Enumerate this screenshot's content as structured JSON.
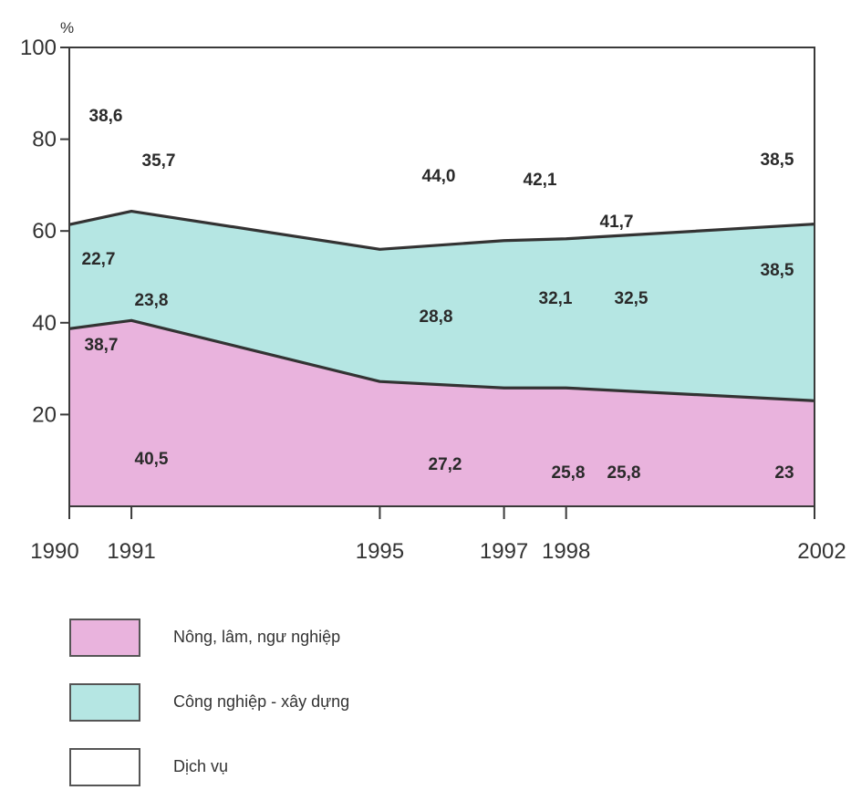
{
  "chart_data": {
    "type": "area",
    "stacked": true,
    "x": [
      1990,
      1991,
      1995,
      1997,
      1998,
      2002
    ],
    "x_tick_labels": [
      "1990",
      "1991",
      "1995",
      "1997",
      "1998",
      "2002"
    ],
    "ylim": [
      0,
      100
    ],
    "y_ticks": [
      20,
      40,
      60,
      80,
      100
    ],
    "y_tick_labels": [
      "20",
      "40",
      "60",
      "80",
      "100"
    ],
    "y_unit": "%",
    "series": [
      {
        "name": "Nông, lâm, ngư nghiệp",
        "color": "#e9b3dd",
        "values": [
          38.7,
          40.5,
          27.2,
          25.8,
          25.8,
          23
        ],
        "labels": [
          "38,7",
          "40,5",
          "27,2",
          "25,8",
          "25,8",
          "23"
        ]
      },
      {
        "name": "Công nghiệp - xây dựng",
        "color": "#b5e6e3",
        "values": [
          22.7,
          23.8,
          28.8,
          32.1,
          32.5,
          38.5
        ],
        "labels": [
          "22,7",
          "23,8",
          "28,8",
          "32,1",
          "32,5",
          "38,5"
        ]
      },
      {
        "name": "Dịch vụ",
        "color": "#ffffff",
        "values": [
          38.6,
          35.7,
          44.0,
          42.1,
          41.7,
          38.5
        ],
        "labels": [
          "38,6",
          "35,7",
          "44,0",
          "42,1",
          "41,7",
          "38,5"
        ]
      }
    ],
    "legend_position": "bottom",
    "grid": false
  }
}
